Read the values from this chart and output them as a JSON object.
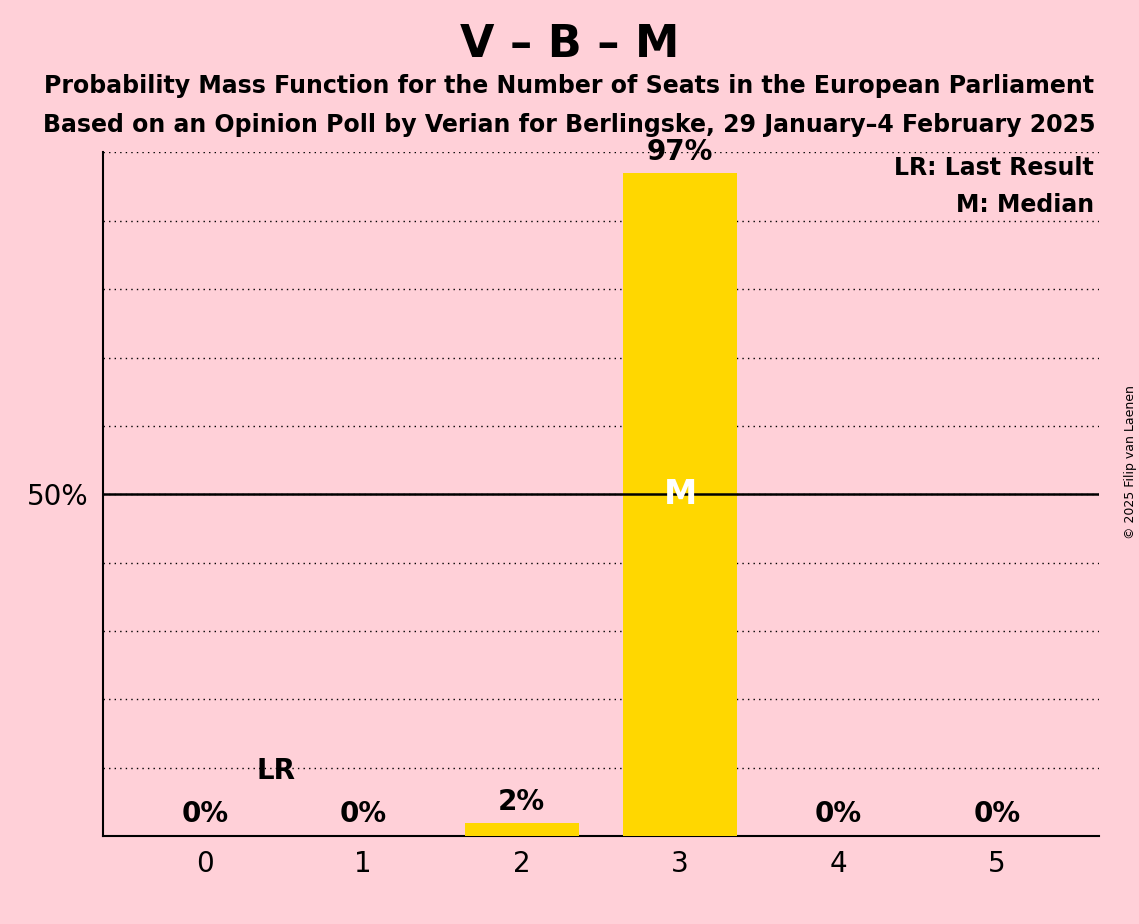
{
  "title": "V – B – M",
  "subtitle1": "Probability Mass Function for the Number of Seats in the European Parliament",
  "subtitle2": "Based on an Opinion Poll by Verian for Berlingske, 29 January–4 February 2025",
  "copyright": "© 2025 Filip van Laenen",
  "categories": [
    0,
    1,
    2,
    3,
    4,
    5
  ],
  "values": [
    0,
    0,
    2,
    97,
    0,
    0
  ],
  "bar_color": "#FFD700",
  "background_color": "#FFD0D8",
  "median_label": "M",
  "lr_label": "LR",
  "legend_lr": "LR: Last Result",
  "legend_m": "M: Median",
  "last_result_seat": 2,
  "median_seat": 3,
  "ylim": [
    0,
    100
  ],
  "yticks": [
    0,
    10,
    20,
    30,
    40,
    50,
    60,
    70,
    80,
    90,
    100
  ],
  "title_fontsize": 32,
  "subtitle_fontsize": 17,
  "tick_fontsize": 20,
  "annotation_fontsize": 20,
  "legend_fontsize": 17,
  "lr_fontsize": 20,
  "median_label_fontsize": 24,
  "copyright_fontsize": 9,
  "bar_width": 0.72
}
